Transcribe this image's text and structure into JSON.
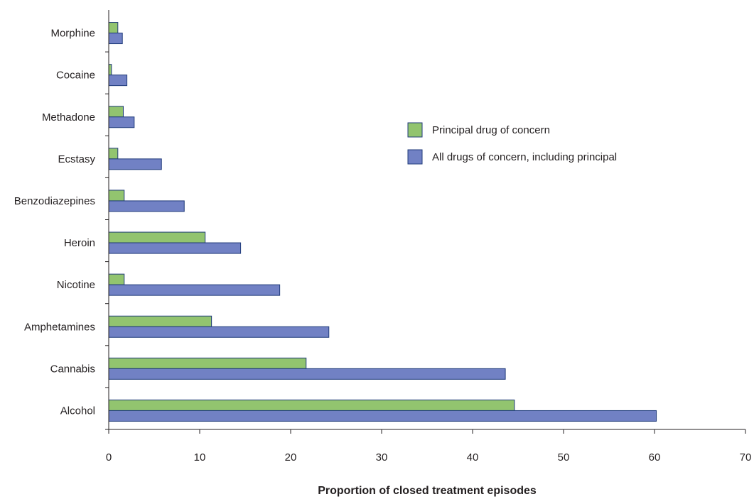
{
  "chart_data": {
    "type": "bar",
    "orientation": "horizontal",
    "categories": [
      "Morphine",
      "Cocaine",
      "Methadone",
      "Ecstasy",
      "Benzodiazepines",
      "Heroin",
      "Nicotine",
      "Amphetamines",
      "Cannabis",
      "Alcohol"
    ],
    "series": [
      {
        "name": "Principal drug of concern",
        "color": "#92c46f",
        "values": [
          1.0,
          0.3,
          1.6,
          1.0,
          1.7,
          10.6,
          1.7,
          11.3,
          21.7,
          44.6
        ]
      },
      {
        "name": "All drugs of concern, including principal",
        "color": "#7181c4",
        "values": [
          1.5,
          2.0,
          2.8,
          5.8,
          8.3,
          14.5,
          18.8,
          24.2,
          43.6,
          60.2
        ]
      }
    ],
    "xlabel": "Proportion of closed treatment episodes",
    "ylabel": "",
    "xlim": [
      0,
      70
    ],
    "xticks": [
      "0",
      "10",
      "20",
      "30",
      "40",
      "50",
      "60",
      "70"
    ],
    "grid": false,
    "legend_position": "right"
  }
}
